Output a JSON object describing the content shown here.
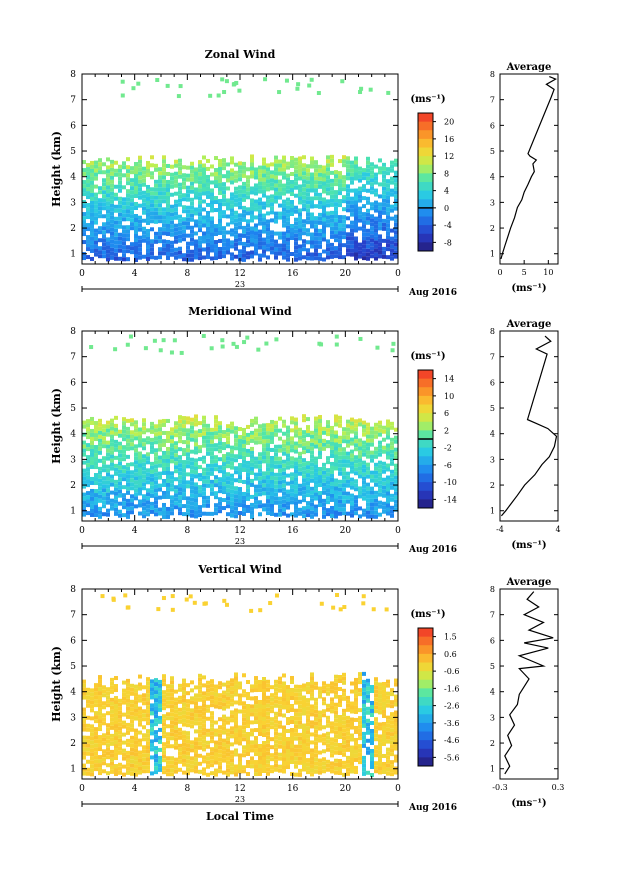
{
  "figure": {
    "shared_xlabel": "Local Time",
    "date_text": "Aug 2016",
    "day_label": "23",
    "avg_title": "Average",
    "unit_label": "(ms⁻¹)"
  },
  "chart_data": [
    {
      "type": "heatmap",
      "title": "Zonal Wind",
      "ylabel": "Height (km)",
      "xticks": [
        "0",
        "4",
        "8",
        "12",
        "16",
        "20",
        "0"
      ],
      "xlim": [
        0,
        24
      ],
      "ylim": [
        0.6,
        8
      ],
      "yticks": [
        1,
        2,
        3,
        4,
        5,
        6,
        7,
        8
      ],
      "data_top_km": 4.6,
      "colorbar": {
        "unit": "(ms⁻¹)",
        "ticks": [
          "20",
          "16",
          "12",
          "8",
          "4",
          "0",
          "-4",
          "-8"
        ],
        "range": [
          -10,
          22
        ],
        "zero_line": 0
      },
      "profile": {
        "xlim": [
          0,
          12
        ],
        "xticks": [
          "0",
          "5",
          "10"
        ],
        "xlabel": "(ms⁻¹)",
        "points": [
          [
            0.2,
            0.8
          ],
          [
            0.5,
            1.0
          ],
          [
            1.0,
            1.3
          ],
          [
            1.5,
            1.6
          ],
          [
            2.2,
            2.0
          ],
          [
            3.0,
            2.4
          ],
          [
            3.6,
            2.8
          ],
          [
            4.5,
            3.1
          ],
          [
            5.0,
            3.4
          ],
          [
            5.8,
            3.7
          ],
          [
            6.5,
            4.0
          ],
          [
            7.1,
            4.2
          ],
          [
            6.8,
            4.5
          ],
          [
            7.5,
            4.65
          ],
          [
            6.2,
            4.8
          ],
          [
            5.8,
            4.9
          ],
          [
            10.6,
            7.1
          ],
          [
            11.2,
            7.4
          ],
          [
            9.6,
            7.6
          ],
          [
            11.5,
            7.8
          ],
          [
            10.2,
            7.9
          ]
        ]
      }
    },
    {
      "type": "heatmap",
      "title": "Meridional Wind",
      "ylabel": "Height (km)",
      "xticks": [
        "0",
        "4",
        "8",
        "12",
        "16",
        "20",
        "0"
      ],
      "xlim": [
        0,
        24
      ],
      "ylim": [
        0.6,
        8
      ],
      "yticks": [
        1,
        2,
        3,
        4,
        5,
        6,
        7,
        8
      ],
      "data_top_km": 4.5,
      "colorbar": {
        "unit": "(ms⁻¹)",
        "ticks": [
          "14",
          "10",
          "6",
          "2",
          "-2",
          "-6",
          "-10",
          "-14"
        ],
        "range": [
          -16,
          16
        ],
        "zero_line": 0
      },
      "profile": {
        "xlim": [
          -4,
          4
        ],
        "xticks": [
          "-4",
          "4"
        ],
        "xlabel": "(ms⁻¹)",
        "points": [
          [
            -3.8,
            0.8
          ],
          [
            -3.2,
            1.0
          ],
          [
            -2.4,
            1.3
          ],
          [
            -1.6,
            1.6
          ],
          [
            -0.6,
            2.0
          ],
          [
            0.8,
            2.4
          ],
          [
            1.8,
            2.8
          ],
          [
            2.8,
            3.1
          ],
          [
            3.5,
            3.5
          ],
          [
            3.8,
            3.9
          ],
          [
            2.6,
            4.2
          ],
          [
            1.0,
            4.4
          ],
          [
            -0.2,
            4.55
          ],
          [
            2.5,
            7.1
          ],
          [
            1.0,
            7.3
          ],
          [
            3.0,
            7.6
          ],
          [
            2.2,
            7.8
          ]
        ]
      }
    },
    {
      "type": "heatmap",
      "title": "Vertical Wind",
      "ylabel": "Height (km)",
      "xlabel": "Local Time",
      "xticks": [
        "0",
        "4",
        "8",
        "12",
        "16",
        "20",
        "0"
      ],
      "xlim": [
        0,
        24
      ],
      "ylim": [
        0.6,
        8
      ],
      "yticks": [
        1,
        2,
        3,
        4,
        5,
        6,
        7,
        8
      ],
      "data_top_km": 4.5,
      "colorbar": {
        "unit": "(ms⁻¹)",
        "ticks": [
          "1.5",
          "0.6",
          "-0.6",
          "-1.6",
          "-2.6",
          "-3.6",
          "-4.6",
          "-5.6"
        ],
        "range": [
          -6.1,
          2.0
        ]
      },
      "profile": {
        "xlim": [
          -0.3,
          0.3
        ],
        "xticks": [
          "-0.3",
          "0.3"
        ],
        "xlabel": "(ms⁻¹)",
        "points": [
          [
            -0.25,
            0.8
          ],
          [
            -0.2,
            1.1
          ],
          [
            -0.25,
            1.5
          ],
          [
            -0.18,
            1.9
          ],
          [
            -0.22,
            2.3
          ],
          [
            -0.15,
            2.7
          ],
          [
            -0.2,
            3.1
          ],
          [
            -0.12,
            3.5
          ],
          [
            -0.1,
            3.9
          ],
          [
            -0.05,
            4.2
          ],
          [
            0.0,
            4.5
          ],
          [
            -0.1,
            4.9
          ],
          [
            0.15,
            5.0
          ],
          [
            -0.1,
            5.4
          ],
          [
            0.2,
            5.7
          ],
          [
            -0.05,
            5.9
          ],
          [
            0.25,
            6.1
          ],
          [
            0.0,
            6.4
          ],
          [
            0.15,
            6.7
          ],
          [
            -0.05,
            7.0
          ],
          [
            0.1,
            7.3
          ],
          [
            -0.02,
            7.6
          ],
          [
            0.05,
            7.9
          ]
        ]
      }
    }
  ]
}
